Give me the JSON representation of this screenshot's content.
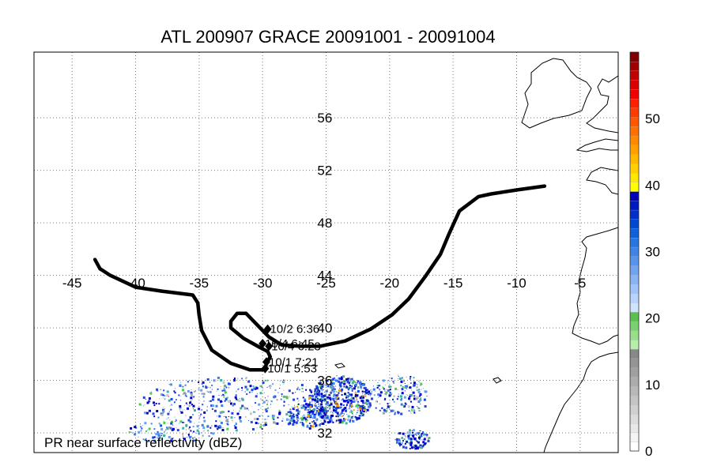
{
  "title": "ATL 200907 GRACE 20091001 - 20091004",
  "footnote": "PR near surface reflectivity (dBZ)",
  "map": {
    "lon_range": [
      -48,
      -2
    ],
    "lat_range": [
      30.5,
      61
    ],
    "lon_ticks": [
      -45,
      -40,
      -35,
      -30,
      -25,
      -20,
      -15,
      -10,
      -5
    ],
    "lon_tick_labels": [
      "-45",
      "-40",
      "-35",
      "-30",
      "-25",
      "-20",
      "-15",
      "-10",
      "-5"
    ],
    "lat_ticks": [
      32,
      36,
      40,
      44,
      48,
      52,
      56
    ],
    "lat_tick_labels": [
      "32",
      "36",
      "40",
      "44",
      "48",
      "52",
      "56"
    ],
    "grid": true
  },
  "track": {
    "color": "#000000",
    "points": [
      [
        -43.2,
        45.2
      ],
      [
        -42.8,
        44.5
      ],
      [
        -42.0,
        44.0
      ],
      [
        -40.0,
        43.1
      ],
      [
        -38.0,
        42.8
      ],
      [
        -35.5,
        42.5
      ],
      [
        -35.1,
        41.9
      ],
      [
        -35.0,
        41.0
      ],
      [
        -34.8,
        39.8
      ],
      [
        -34.0,
        38.3
      ],
      [
        -32.5,
        37.3
      ],
      [
        -31.0,
        36.8
      ],
      [
        -29.8,
        36.8
      ],
      [
        -29.7,
        37.3
      ],
      [
        -29.4,
        37.8
      ],
      [
        -29.6,
        38.2
      ],
      [
        -30.2,
        38.5
      ],
      [
        -31.5,
        39.2
      ],
      [
        -32.5,
        40.0
      ],
      [
        -32.5,
        40.5
      ],
      [
        -32.0,
        41.1
      ],
      [
        -31.3,
        41.1
      ],
      [
        -30.5,
        40.3
      ],
      [
        -29.5,
        39.3
      ],
      [
        -28.5,
        38.7
      ],
      [
        -27.0,
        38.6
      ],
      [
        -25.5,
        38.6
      ],
      [
        -23.5,
        39.0
      ],
      [
        -21.5,
        39.9
      ],
      [
        -19.8,
        41.0
      ],
      [
        -18.5,
        42.2
      ],
      [
        -17.2,
        43.9
      ],
      [
        -16.0,
        45.6
      ],
      [
        -15.3,
        47.2
      ],
      [
        -14.5,
        48.9
      ],
      [
        -13.0,
        50.0
      ],
      [
        -12.0,
        50.2
      ],
      [
        -10.0,
        50.5
      ],
      [
        -7.8,
        50.8
      ]
    ]
  },
  "track_labels": [
    {
      "text": "10/2 6:36",
      "lon": -29.6,
      "lat": 39.9
    },
    {
      "text": "10/4 6:45",
      "lon": -30.0,
      "lat": 38.8
    },
    {
      "text": "10/4 6:23",
      "lon": -29.5,
      "lat": 38.6
    },
    {
      "text": "10/1 7:21",
      "lon": -29.7,
      "lat": 37.4
    },
    {
      "text": "10/1 5:53",
      "lon": -29.8,
      "lat": 36.9
    }
  ],
  "colorbar": {
    "min": 0,
    "max": 60,
    "tick_values": [
      0,
      10,
      20,
      30,
      40,
      50
    ],
    "tick_labels": [
      "0",
      "10",
      "20",
      "30",
      "40",
      "50"
    ],
    "colors": [
      "#ffffff",
      "#f4f4f4",
      "#e8e8e8",
      "#dcdcdc",
      "#d0d0d0",
      "#c4c4c4",
      "#b8b8b8",
      "#acacac",
      "#a0a0a0",
      "#949494",
      "#888888",
      "#b4f0a8",
      "#96e08a",
      "#78d06e",
      "#5ac052",
      "#d0e4ff",
      "#b8d4fc",
      "#a0c4f8",
      "#88b4f4",
      "#70a4f0",
      "#5894ec",
      "#4084e8",
      "#2874e0",
      "#1060d8",
      "#0048d0",
      "#0030c8",
      "#0018c0",
      "#0000b8",
      "#ffff00",
      "#ffe800",
      "#ffd000",
      "#ffb800",
      "#ffa000",
      "#ff8800",
      "#ff7000",
      "#ff5800",
      "#ff3c00",
      "#ff2000",
      "#f00000",
      "#d80000",
      "#c00000",
      "#a00000",
      "#800000"
    ]
  },
  "rain_colors": [
    "#0000c8",
    "#1e46e6",
    "#3c78f0",
    "#64a0f0",
    "#3cb4a0",
    "#50c850",
    "#a0a0a0",
    "#c8c8c8",
    "#0028a0",
    "#f0a000"
  ]
}
